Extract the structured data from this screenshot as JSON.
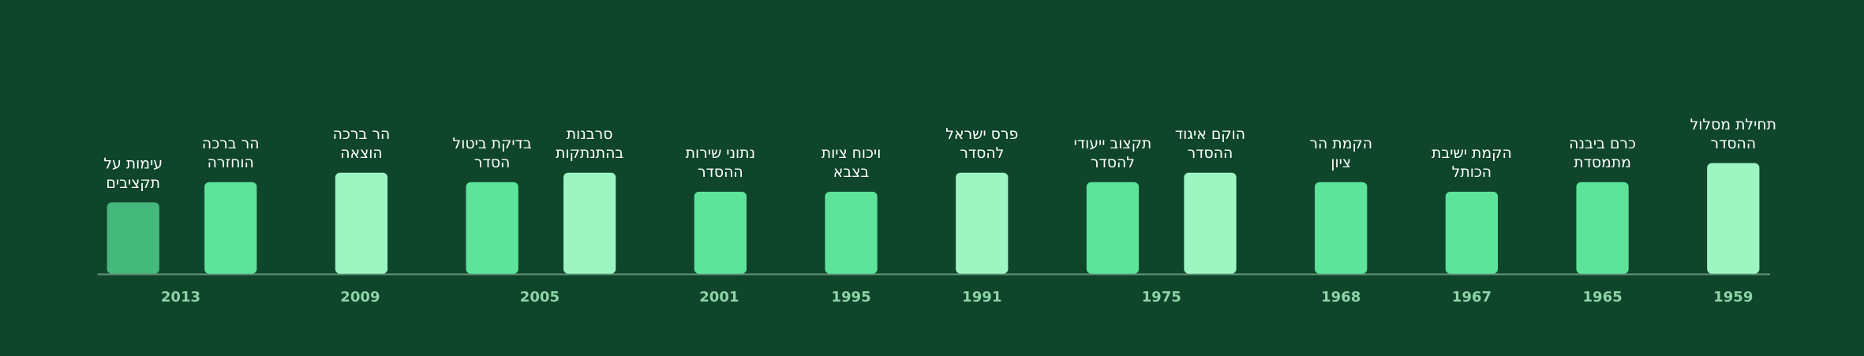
{
  "events": [
    {
      "label": [
        "עימות על",
        "תקציבים"
      ]
    },
    {
      "label": [
        "הר ברכה",
        "הוחזרה"
      ]
    },
    {
      "label": [
        "הר ברכה",
        "הוצאה"
      ]
    },
    {
      "label": [
        "בדיקת ביטול",
        "הסדר"
      ]
    },
    {
      "label": [
        "סרבנות",
        "בהתנתקות"
      ]
    },
    {
      "label": [
        "נתוני שירות",
        "ההסדר"
      ]
    },
    {
      "label": [
        "ויכוח ציות",
        "בצבא"
      ]
    },
    {
      "label": [
        "פרס ישראל",
        "להסדר"
      ]
    },
    {
      "label": [
        "תקצוב ייעודי",
        "להסדר"
      ]
    },
    {
      "label": [
        "הוקם איגוד",
        "ההסדר"
      ]
    },
    {
      "label": [
        "הקמת הר",
        "ציון"
      ]
    },
    {
      "label": [
        "הקמת ישיבת",
        "הכותל"
      ]
    },
    {
      "label": [
        "כרם ביבנה",
        "מתמסדת"
      ]
    },
    {
      "label": [
        "תחילת מסלול",
        "ההסדר"
      ]
    }
  ],
  "years": [
    "2013",
    "2009",
    "2005",
    "2001",
    "1995",
    "1991",
    "1975",
    "1968",
    "1967",
    "1965",
    "1959"
  ]
}
